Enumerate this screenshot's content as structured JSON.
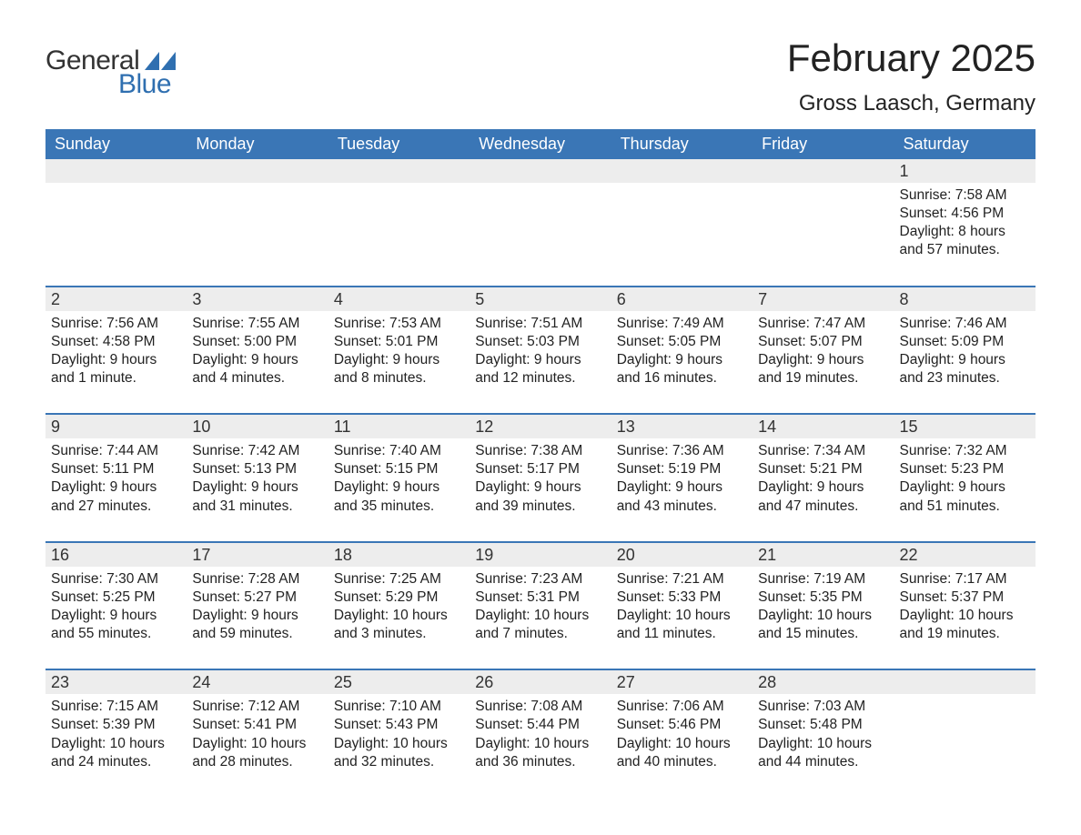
{
  "brand": {
    "text1": "General",
    "text2": "Blue",
    "flag_color": "#2f6fb0"
  },
  "title": "February 2025",
  "location": "Gross Laasch, Germany",
  "colors": {
    "header_bg": "#3a76b6",
    "header_text": "#ffffff",
    "daynum_bg": "#ededed",
    "border": "#3a76b6",
    "text": "#222222",
    "background": "#ffffff"
  },
  "weekdays": [
    "Sunday",
    "Monday",
    "Tuesday",
    "Wednesday",
    "Thursday",
    "Friday",
    "Saturday"
  ],
  "weeks": [
    [
      {
        "empty": true
      },
      {
        "empty": true
      },
      {
        "empty": true
      },
      {
        "empty": true
      },
      {
        "empty": true
      },
      {
        "empty": true
      },
      {
        "day": 1,
        "sunrise": "Sunrise: 7:58 AM",
        "sunset": "Sunset: 4:56 PM",
        "daylight": "Daylight: 8 hours and 57 minutes."
      }
    ],
    [
      {
        "day": 2,
        "sunrise": "Sunrise: 7:56 AM",
        "sunset": "Sunset: 4:58 PM",
        "daylight": "Daylight: 9 hours and 1 minute."
      },
      {
        "day": 3,
        "sunrise": "Sunrise: 7:55 AM",
        "sunset": "Sunset: 5:00 PM",
        "daylight": "Daylight: 9 hours and 4 minutes."
      },
      {
        "day": 4,
        "sunrise": "Sunrise: 7:53 AM",
        "sunset": "Sunset: 5:01 PM",
        "daylight": "Daylight: 9 hours and 8 minutes."
      },
      {
        "day": 5,
        "sunrise": "Sunrise: 7:51 AM",
        "sunset": "Sunset: 5:03 PM",
        "daylight": "Daylight: 9 hours and 12 minutes."
      },
      {
        "day": 6,
        "sunrise": "Sunrise: 7:49 AM",
        "sunset": "Sunset: 5:05 PM",
        "daylight": "Daylight: 9 hours and 16 minutes."
      },
      {
        "day": 7,
        "sunrise": "Sunrise: 7:47 AM",
        "sunset": "Sunset: 5:07 PM",
        "daylight": "Daylight: 9 hours and 19 minutes."
      },
      {
        "day": 8,
        "sunrise": "Sunrise: 7:46 AM",
        "sunset": "Sunset: 5:09 PM",
        "daylight": "Daylight: 9 hours and 23 minutes."
      }
    ],
    [
      {
        "day": 9,
        "sunrise": "Sunrise: 7:44 AM",
        "sunset": "Sunset: 5:11 PM",
        "daylight": "Daylight: 9 hours and 27 minutes."
      },
      {
        "day": 10,
        "sunrise": "Sunrise: 7:42 AM",
        "sunset": "Sunset: 5:13 PM",
        "daylight": "Daylight: 9 hours and 31 minutes."
      },
      {
        "day": 11,
        "sunrise": "Sunrise: 7:40 AM",
        "sunset": "Sunset: 5:15 PM",
        "daylight": "Daylight: 9 hours and 35 minutes."
      },
      {
        "day": 12,
        "sunrise": "Sunrise: 7:38 AM",
        "sunset": "Sunset: 5:17 PM",
        "daylight": "Daylight: 9 hours and 39 minutes."
      },
      {
        "day": 13,
        "sunrise": "Sunrise: 7:36 AM",
        "sunset": "Sunset: 5:19 PM",
        "daylight": "Daylight: 9 hours and 43 minutes."
      },
      {
        "day": 14,
        "sunrise": "Sunrise: 7:34 AM",
        "sunset": "Sunset: 5:21 PM",
        "daylight": "Daylight: 9 hours and 47 minutes."
      },
      {
        "day": 15,
        "sunrise": "Sunrise: 7:32 AM",
        "sunset": "Sunset: 5:23 PM",
        "daylight": "Daylight: 9 hours and 51 minutes."
      }
    ],
    [
      {
        "day": 16,
        "sunrise": "Sunrise: 7:30 AM",
        "sunset": "Sunset: 5:25 PM",
        "daylight": "Daylight: 9 hours and 55 minutes."
      },
      {
        "day": 17,
        "sunrise": "Sunrise: 7:28 AM",
        "sunset": "Sunset: 5:27 PM",
        "daylight": "Daylight: 9 hours and 59 minutes."
      },
      {
        "day": 18,
        "sunrise": "Sunrise: 7:25 AM",
        "sunset": "Sunset: 5:29 PM",
        "daylight": "Daylight: 10 hours and 3 minutes."
      },
      {
        "day": 19,
        "sunrise": "Sunrise: 7:23 AM",
        "sunset": "Sunset: 5:31 PM",
        "daylight": "Daylight: 10 hours and 7 minutes."
      },
      {
        "day": 20,
        "sunrise": "Sunrise: 7:21 AM",
        "sunset": "Sunset: 5:33 PM",
        "daylight": "Daylight: 10 hours and 11 minutes."
      },
      {
        "day": 21,
        "sunrise": "Sunrise: 7:19 AM",
        "sunset": "Sunset: 5:35 PM",
        "daylight": "Daylight: 10 hours and 15 minutes."
      },
      {
        "day": 22,
        "sunrise": "Sunrise: 7:17 AM",
        "sunset": "Sunset: 5:37 PM",
        "daylight": "Daylight: 10 hours and 19 minutes."
      }
    ],
    [
      {
        "day": 23,
        "sunrise": "Sunrise: 7:15 AM",
        "sunset": "Sunset: 5:39 PM",
        "daylight": "Daylight: 10 hours and 24 minutes."
      },
      {
        "day": 24,
        "sunrise": "Sunrise: 7:12 AM",
        "sunset": "Sunset: 5:41 PM",
        "daylight": "Daylight: 10 hours and 28 minutes."
      },
      {
        "day": 25,
        "sunrise": "Sunrise: 7:10 AM",
        "sunset": "Sunset: 5:43 PM",
        "daylight": "Daylight: 10 hours and 32 minutes."
      },
      {
        "day": 26,
        "sunrise": "Sunrise: 7:08 AM",
        "sunset": "Sunset: 5:44 PM",
        "daylight": "Daylight: 10 hours and 36 minutes."
      },
      {
        "day": 27,
        "sunrise": "Sunrise: 7:06 AM",
        "sunset": "Sunset: 5:46 PM",
        "daylight": "Daylight: 10 hours and 40 minutes."
      },
      {
        "day": 28,
        "sunrise": "Sunrise: 7:03 AM",
        "sunset": "Sunset: 5:48 PM",
        "daylight": "Daylight: 10 hours and 44 minutes."
      },
      {
        "empty": true
      }
    ]
  ]
}
